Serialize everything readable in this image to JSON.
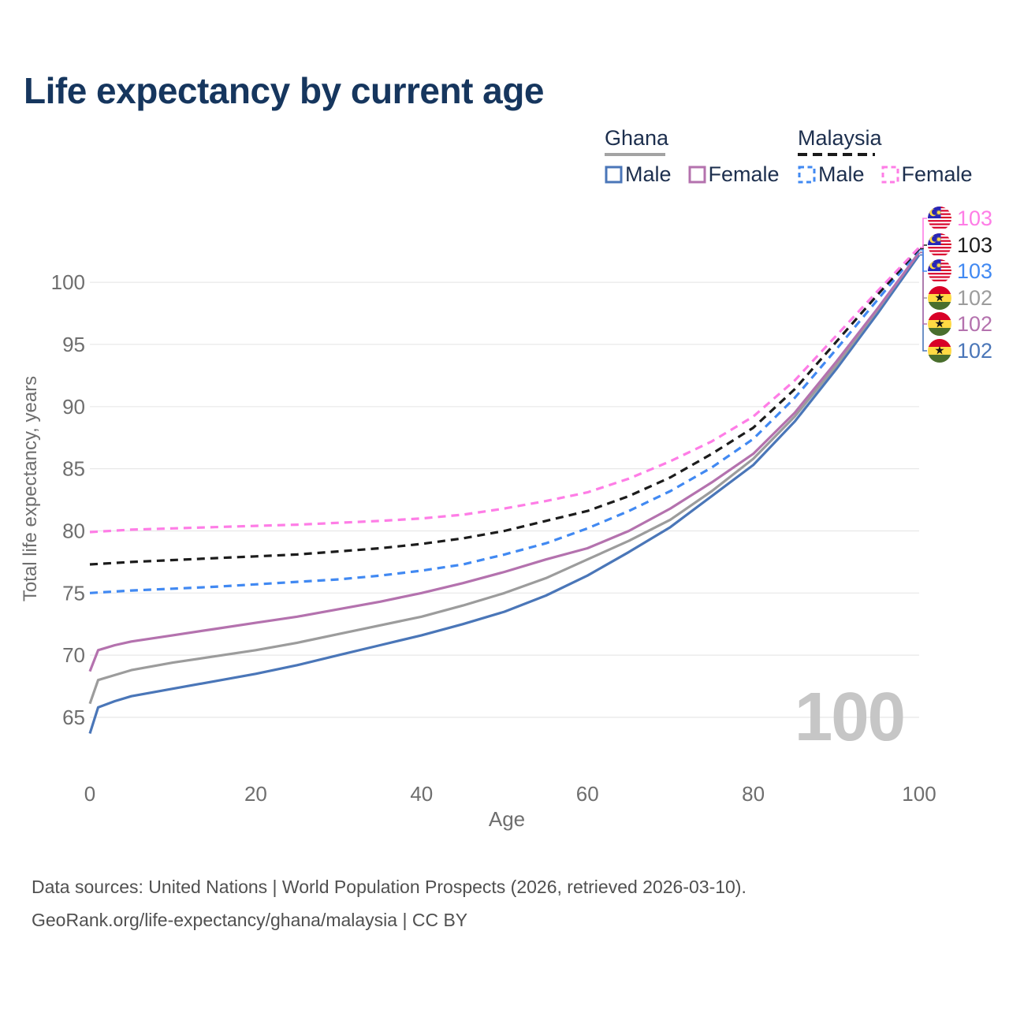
{
  "title": "Life expectancy by current age",
  "watermark": "100",
  "legend": {
    "groups": [
      {
        "country": "Ghana",
        "style": "solid",
        "underline_color": "#a3a3a3",
        "items": [
          {
            "label": "Male",
            "color": "#4a76b8"
          },
          {
            "label": "Female",
            "color": "#b472ae"
          }
        ]
      },
      {
        "country": "Malaysia",
        "style": "dashed",
        "underline_color": "#1a1a1a",
        "items": [
          {
            "label": "Male",
            "color": "#4189f2"
          },
          {
            "label": "Female",
            "color": "#fe7de6"
          }
        ]
      }
    ]
  },
  "footer": {
    "line1": "Data sources: United Nations | World Population Prospects (2026, retrieved 2026-03-10).",
    "line2": "GeoRank.org/life-expectancy/ghana/malaysia | CC BY"
  },
  "chart_data": {
    "type": "line",
    "title": "Life expectancy by current age",
    "xlabel": "Age",
    "ylabel": "Total life expectancy, years",
    "xlim": [
      0,
      100
    ],
    "ylim": [
      63,
      104
    ],
    "x_ticks": [
      0,
      20,
      40,
      60,
      80,
      100
    ],
    "y_ticks": [
      65,
      70,
      75,
      80,
      85,
      90,
      95,
      100
    ],
    "grid": "horizontal",
    "grid_color": "#e8e8e8",
    "legend_position": "top-right",
    "series": [
      {
        "name": "Ghana Male",
        "country": "Ghana",
        "sex": "Male",
        "color": "#4a76b8",
        "dashed": false,
        "label_text": "102",
        "label_row": 5,
        "points": [
          [
            0,
            63.7
          ],
          [
            1,
            65.8
          ],
          [
            3,
            66.3
          ],
          [
            5,
            66.7
          ],
          [
            10,
            67.3
          ],
          [
            15,
            67.9
          ],
          [
            20,
            68.5
          ],
          [
            25,
            69.2
          ],
          [
            30,
            70.0
          ],
          [
            35,
            70.8
          ],
          [
            40,
            71.6
          ],
          [
            45,
            72.5
          ],
          [
            50,
            73.5
          ],
          [
            55,
            74.8
          ],
          [
            60,
            76.4
          ],
          [
            65,
            78.3
          ],
          [
            70,
            80.3
          ],
          [
            75,
            82.8
          ],
          [
            80,
            85.3
          ],
          [
            85,
            88.8
          ],
          [
            90,
            93.0
          ],
          [
            95,
            97.5
          ],
          [
            100,
            102.2
          ]
        ]
      },
      {
        "name": "Ghana Both sexes",
        "country": "Ghana",
        "sex": "Both",
        "color": "#9c9c9c",
        "dashed": false,
        "label_text": "102",
        "label_row": 3,
        "points": [
          [
            0,
            66.1
          ],
          [
            1,
            68.0
          ],
          [
            3,
            68.4
          ],
          [
            5,
            68.8
          ],
          [
            10,
            69.4
          ],
          [
            15,
            69.9
          ],
          [
            20,
            70.4
          ],
          [
            25,
            71.0
          ],
          [
            30,
            71.7
          ],
          [
            35,
            72.4
          ],
          [
            40,
            73.1
          ],
          [
            45,
            74.0
          ],
          [
            50,
            75.0
          ],
          [
            55,
            76.2
          ],
          [
            60,
            77.7
          ],
          [
            65,
            79.2
          ],
          [
            70,
            80.9
          ],
          [
            75,
            83.2
          ],
          [
            80,
            85.8
          ],
          [
            85,
            89.2
          ],
          [
            90,
            93.3
          ],
          [
            95,
            97.8
          ],
          [
            100,
            102.42
          ]
        ]
      },
      {
        "name": "Ghana Female",
        "country": "Ghana",
        "sex": "Female",
        "color": "#b472ae",
        "dashed": false,
        "label_text": "102",
        "label_row": 4,
        "points": [
          [
            0,
            68.7
          ],
          [
            1,
            70.4
          ],
          [
            3,
            70.8
          ],
          [
            5,
            71.1
          ],
          [
            10,
            71.6
          ],
          [
            15,
            72.1
          ],
          [
            20,
            72.6
          ],
          [
            25,
            73.1
          ],
          [
            30,
            73.7
          ],
          [
            35,
            74.3
          ],
          [
            40,
            75.0
          ],
          [
            45,
            75.8
          ],
          [
            50,
            76.7
          ],
          [
            55,
            77.7
          ],
          [
            60,
            78.6
          ],
          [
            65,
            80.0
          ],
          [
            70,
            81.8
          ],
          [
            75,
            83.9
          ],
          [
            80,
            86.2
          ],
          [
            85,
            89.5
          ],
          [
            90,
            93.6
          ],
          [
            95,
            97.9
          ],
          [
            100,
            102.38
          ]
        ]
      },
      {
        "name": "Malaysia Male",
        "country": "Malaysia",
        "sex": "Male",
        "color": "#4189f2",
        "dashed": true,
        "label_text": "103",
        "label_row": 2,
        "points": [
          [
            0,
            75.0
          ],
          [
            5,
            75.2
          ],
          [
            10,
            75.35
          ],
          [
            15,
            75.5
          ],
          [
            20,
            75.7
          ],
          [
            25,
            75.9
          ],
          [
            30,
            76.1
          ],
          [
            35,
            76.4
          ],
          [
            40,
            76.8
          ],
          [
            45,
            77.3
          ],
          [
            50,
            78.1
          ],
          [
            55,
            79.0
          ],
          [
            60,
            80.2
          ],
          [
            65,
            81.6
          ],
          [
            70,
            83.2
          ],
          [
            75,
            85.1
          ],
          [
            80,
            87.4
          ],
          [
            85,
            90.7
          ],
          [
            90,
            94.6
          ],
          [
            95,
            98.6
          ],
          [
            100,
            102.6
          ]
        ]
      },
      {
        "name": "Malaysia Both sexes",
        "country": "Malaysia",
        "sex": "Both",
        "color": "#1c1c1c",
        "dashed": true,
        "label_text": "103",
        "label_row": 1,
        "points": [
          [
            0,
            77.3
          ],
          [
            5,
            77.5
          ],
          [
            10,
            77.65
          ],
          [
            15,
            77.8
          ],
          [
            20,
            77.95
          ],
          [
            25,
            78.1
          ],
          [
            30,
            78.35
          ],
          [
            35,
            78.6
          ],
          [
            40,
            78.95
          ],
          [
            45,
            79.4
          ],
          [
            50,
            80.0
          ],
          [
            55,
            80.8
          ],
          [
            60,
            81.6
          ],
          [
            65,
            82.8
          ],
          [
            70,
            84.3
          ],
          [
            75,
            86.2
          ],
          [
            80,
            88.3
          ],
          [
            85,
            91.4
          ],
          [
            90,
            95.2
          ],
          [
            95,
            99.0
          ],
          [
            100,
            102.7
          ]
        ]
      },
      {
        "name": "Malaysia Female",
        "country": "Malaysia",
        "sex": "Female",
        "color": "#fe7de6",
        "dashed": true,
        "label_text": "103",
        "label_row": 0,
        "points": [
          [
            0,
            79.9
          ],
          [
            5,
            80.1
          ],
          [
            10,
            80.2
          ],
          [
            15,
            80.3
          ],
          [
            20,
            80.4
          ],
          [
            25,
            80.5
          ],
          [
            30,
            80.65
          ],
          [
            35,
            80.8
          ],
          [
            40,
            81.0
          ],
          [
            45,
            81.3
          ],
          [
            50,
            81.8
          ],
          [
            55,
            82.4
          ],
          [
            60,
            83.1
          ],
          [
            65,
            84.2
          ],
          [
            70,
            85.6
          ],
          [
            75,
            87.2
          ],
          [
            80,
            89.2
          ],
          [
            85,
            92.1
          ],
          [
            90,
            95.7
          ],
          [
            95,
            99.3
          ],
          [
            100,
            102.8
          ]
        ]
      }
    ]
  }
}
